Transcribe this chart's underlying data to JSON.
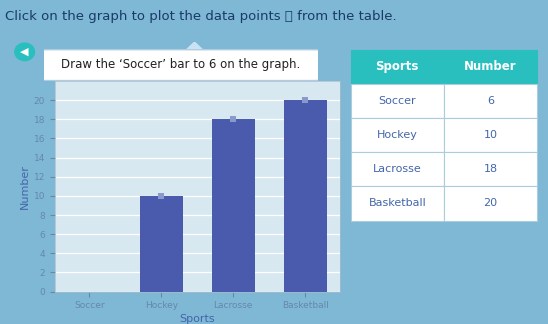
{
  "title_text": "Click on the graph to plot the data points ➕ from the table.",
  "tooltip_text": "Draw the ‘Soccer’ bar to 6 on the graph.",
  "categories": [
    "Soccer",
    "Hockey",
    "Lacrosse",
    "Basketball"
  ],
  "values": [
    0,
    10,
    18,
    20
  ],
  "bar_color": "#4a5aad",
  "ylabel": "Number",
  "xlabel": "Sports",
  "ylim": [
    0,
    22
  ],
  "yticks": [
    0,
    2,
    4,
    6,
    8,
    10,
    12,
    14,
    16,
    18,
    20
  ],
  "outer_bg": "#7eb8d4",
  "chart_frame_color": "#7eb8d4",
  "plot_bg_color": "#d8e8f0",
  "table_header_color": "#2abfbf",
  "table_header_text": "#ffffff",
  "table_cell_bg": "#ffffff",
  "table_text_color": "#4466aa",
  "table_border_color": "#aaccdd",
  "table_sports": [
    "Soccer",
    "Hockey",
    "Lacrosse",
    "Basketball"
  ],
  "table_numbers": [
    6,
    10,
    18,
    20
  ],
  "title_color": "#1a3a6a",
  "title_fontsize": 9.5,
  "tooltip_bg": "#ffffff",
  "tooltip_border": "#b0cce0",
  "arrow_color": "#2abfbf",
  "left_arrow_color": "#2abfbf",
  "up_arrow_color": "#c8e0f0",
  "marker_color": "#8899cc"
}
